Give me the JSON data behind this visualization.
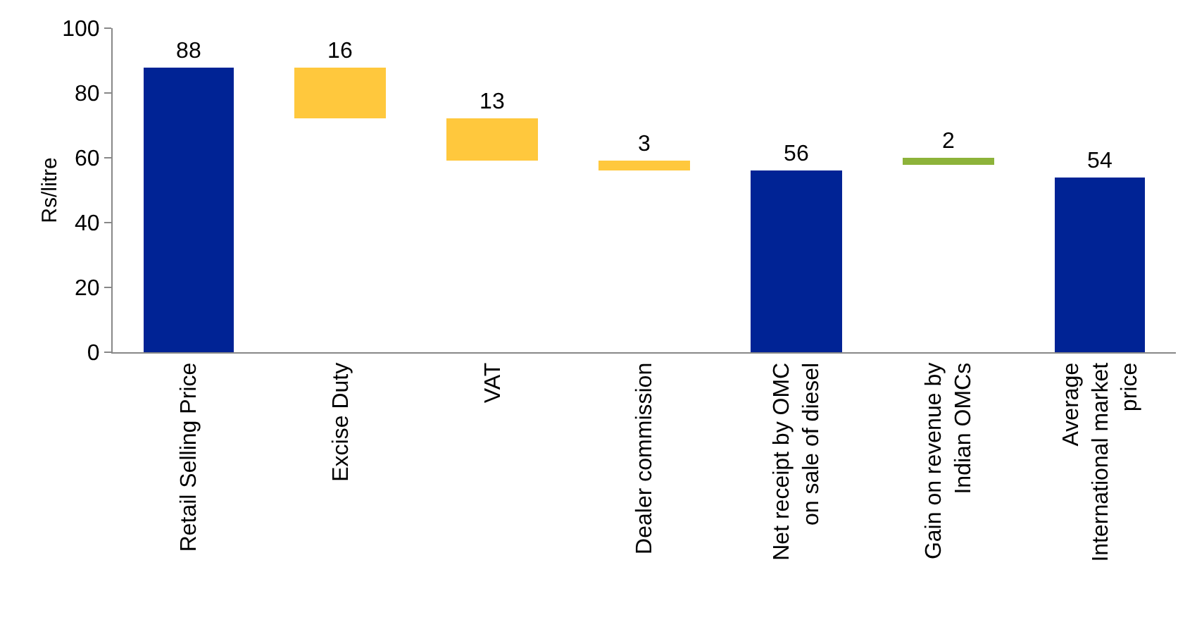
{
  "chart_data": {
    "type": "bar",
    "ylabel": "Rs/litre",
    "categories": [
      "Retail Selling Price",
      "Excise Duty",
      "VAT",
      "Dealer commission",
      "Net receipt by OMC on sale of diesel",
      "Gain on revenue by Indian OMCs",
      "Average International market price"
    ],
    "values": [
      88,
      16,
      13,
      3,
      56,
      2,
      54
    ],
    "base": [
      0,
      72,
      59,
      56,
      0,
      58,
      0
    ],
    "colors": [
      "#002395",
      "#ffc83d",
      "#ffc83d",
      "#ffc83d",
      "#002395",
      "#8db33a",
      "#002395"
    ],
    "data_labels": true,
    "ylim": [
      0,
      100
    ],
    "yticks": [
      0,
      20,
      40,
      60,
      80,
      100
    ],
    "grid": false
  }
}
